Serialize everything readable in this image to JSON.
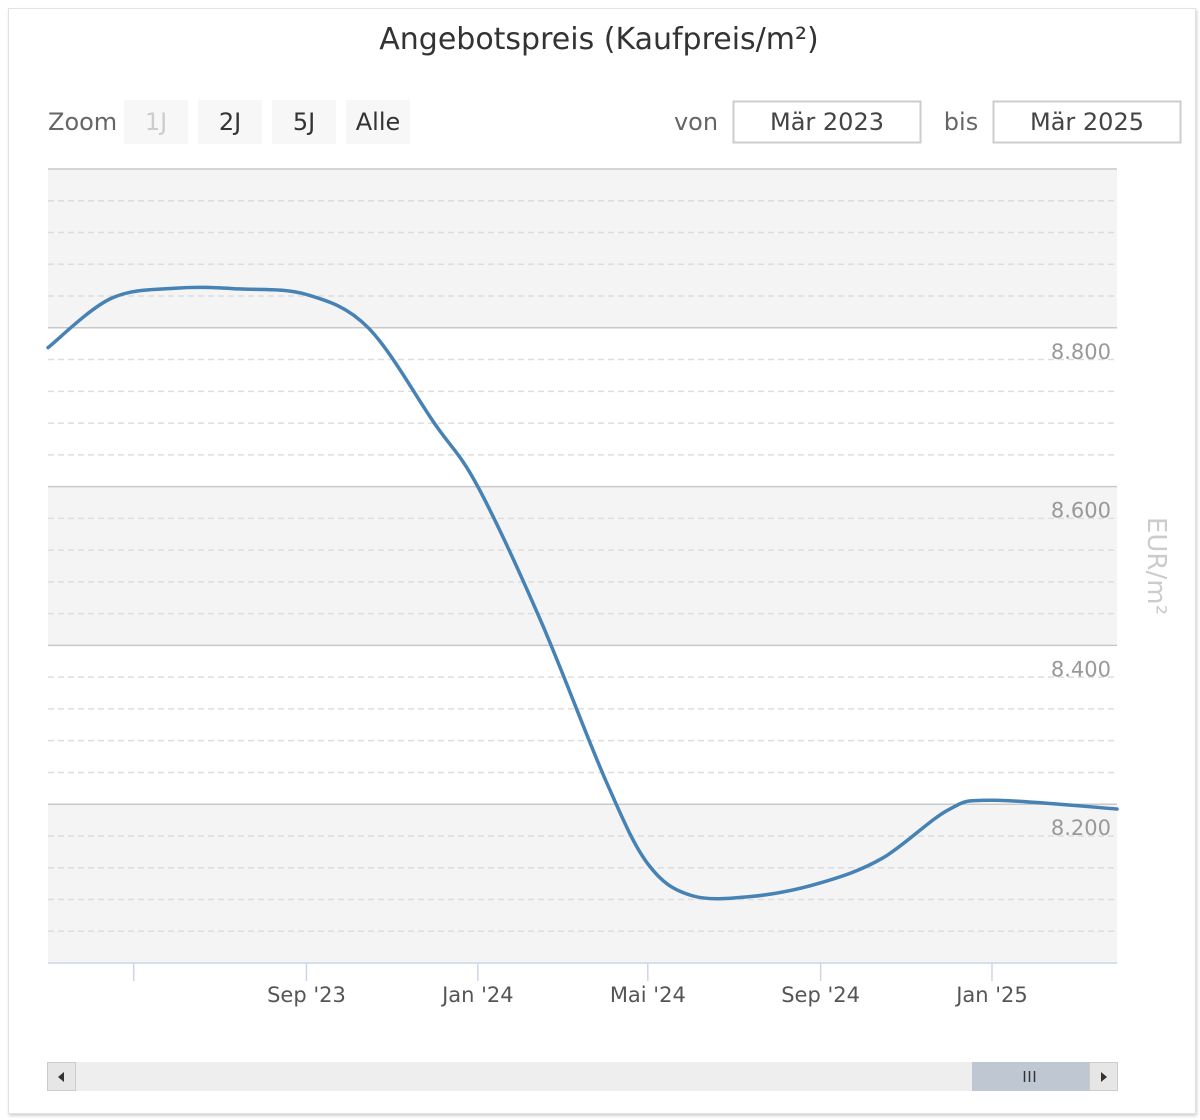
{
  "chart_data": {
    "type": "line",
    "title": "Angebotspreis (Kaufpreis/m²)",
    "ylabel": "EUR/m²",
    "xlabel": "",
    "x_ticks": [
      "Sep '23",
      "Jan '24",
      "Mai '24",
      "Sep '24",
      "Jan '25"
    ],
    "y_ticks": [
      "8.200",
      "8.400",
      "8.600",
      "8.800"
    ],
    "ylim": [
      8000,
      9000
    ],
    "grid": true,
    "legend": "none",
    "series": [
      {
        "color": "#4682b4",
        "points": [
          {
            "x": "2023-03-01",
            "y": 8775
          },
          {
            "x": "2023-04-15",
            "y": 8837
          },
          {
            "x": "2023-06-01",
            "y": 8850
          },
          {
            "x": "2023-07-15",
            "y": 8849
          },
          {
            "x": "2023-09-01",
            "y": 8842
          },
          {
            "x": "2023-10-15",
            "y": 8800
          },
          {
            "x": "2023-12-01",
            "y": 8680
          },
          {
            "x": "2024-01-01",
            "y": 8600
          },
          {
            "x": "2024-02-15",
            "y": 8430
          },
          {
            "x": "2024-04-01",
            "y": 8230
          },
          {
            "x": "2024-05-01",
            "y": 8125
          },
          {
            "x": "2024-06-01",
            "y": 8085
          },
          {
            "x": "2024-07-15",
            "y": 8084
          },
          {
            "x": "2024-09-01",
            "y": 8101
          },
          {
            "x": "2024-10-15",
            "y": 8132
          },
          {
            "x": "2024-12-01",
            "y": 8193
          },
          {
            "x": "2025-01-01",
            "y": 8205
          },
          {
            "x": "2025-03-31",
            "y": 8194
          }
        ]
      }
    ]
  },
  "rangeSelector": {
    "zoom_label": "Zoom",
    "buttons": [
      "1J",
      "2J",
      "5J",
      "Alle"
    ],
    "disabled_button": "1J",
    "from_label": "von",
    "from_value": "Mär 2023",
    "to_label": "bis",
    "to_value": "Mär 2025"
  },
  "scrollbar": {
    "grip_icon": "grip-lines-icon",
    "left_icon": "arrow-left-icon",
    "right_icon": "arrow-right-icon"
  }
}
